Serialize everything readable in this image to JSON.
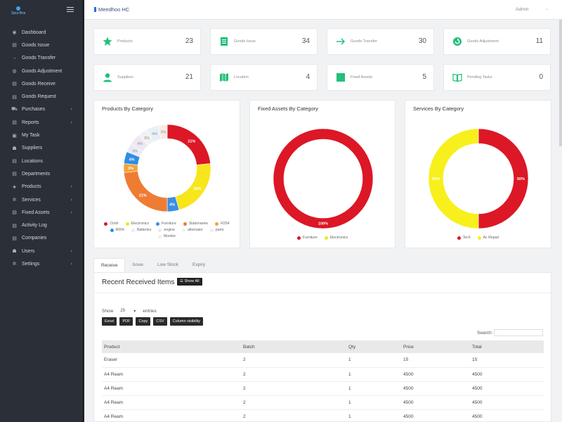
{
  "brand": {
    "name": "Spui-Bne"
  },
  "sidebar": {
    "items": [
      {
        "label": "Dashboard",
        "icon": "dashboard-icon",
        "glyph": "◉",
        "chevron": false
      },
      {
        "label": "Goods Issue",
        "icon": "file-icon",
        "glyph": "▤",
        "chevron": false
      },
      {
        "label": "Goods Transfer",
        "icon": "arrow-right-icon",
        "glyph": "→",
        "chevron": false
      },
      {
        "label": "Goods Adjustment",
        "icon": "globe-icon",
        "glyph": "◍",
        "chevron": false
      },
      {
        "label": "Goods Receive",
        "icon": "inbox-icon",
        "glyph": "▤",
        "chevron": false
      },
      {
        "label": "Goods Request",
        "icon": "file-icon",
        "glyph": "▤",
        "chevron": false
      },
      {
        "label": "Purchases",
        "icon": "cart-icon",
        "glyph": "⛟",
        "chevron": true
      },
      {
        "label": "Reports",
        "icon": "report-icon",
        "glyph": "▤",
        "chevron": true
      },
      {
        "label": "My Task",
        "icon": "task-icon",
        "glyph": "▣",
        "chevron": false
      },
      {
        "label": "Suppliers",
        "icon": "suppliers-icon",
        "glyph": "☗",
        "chevron": false
      },
      {
        "label": "Locations",
        "icon": "location-icon",
        "glyph": "▤",
        "chevron": false
      },
      {
        "label": "Departments",
        "icon": "departments-icon",
        "glyph": "▤",
        "chevron": false
      },
      {
        "label": "Products",
        "icon": "star-icon",
        "glyph": "★",
        "chevron": true
      },
      {
        "label": "Services",
        "icon": "gear-icon",
        "glyph": "✲",
        "chevron": true
      },
      {
        "label": "Fixed Assets",
        "icon": "assets-icon",
        "glyph": "▤",
        "chevron": true
      },
      {
        "label": "Activity Log",
        "icon": "log-icon",
        "glyph": "▤",
        "chevron": false
      },
      {
        "label": "Companies",
        "icon": "companies-icon",
        "glyph": "▤",
        "chevron": false
      },
      {
        "label": "Users",
        "icon": "users-icon",
        "glyph": "☗",
        "chevron": true
      },
      {
        "label": "Settings",
        "icon": "settings-icon",
        "glyph": "✲",
        "chevron": true
      }
    ]
  },
  "topbar": {
    "title": "Meedhoo HC",
    "user": "Admin"
  },
  "stats": [
    {
      "label": "Products",
      "value": "23",
      "icon": "star-icon",
      "color": "#22c07a"
    },
    {
      "label": "Goods Issue",
      "value": "34",
      "icon": "document-icon",
      "color": "#22c07a"
    },
    {
      "label": "Goods Transfer",
      "value": "30",
      "icon": "arrow-right-icon",
      "color": "#22c07a"
    },
    {
      "label": "Goods Adjustment",
      "value": "11",
      "icon": "refresh-icon",
      "color": "#22c07a"
    },
    {
      "label": "Suppliers",
      "value": "21",
      "icon": "user-icon",
      "color": "#22c07a"
    },
    {
      "label": "Location",
      "value": "4",
      "icon": "map-icon",
      "color": "#22c07a"
    },
    {
      "label": "Fixed Assets",
      "value": "5",
      "icon": "square-icon",
      "color": "#22c07a"
    },
    {
      "label": "Pending Tasks",
      "value": "0",
      "icon": "book-icon",
      "color": "#22c07a"
    }
  ],
  "chart_data": [
    {
      "type": "pie",
      "title": "Products By Category",
      "categories": [
        "Cloth",
        "Electronics",
        "Furniture",
        "Stationaries",
        "R254",
        "R004",
        "Batteries",
        "engine",
        "alternator",
        "parts",
        "Monitor"
      ],
      "values": [
        21,
        20,
        4,
        21,
        3,
        4,
        3,
        4,
        3,
        4,
        3
      ],
      "labels": [
        "21%",
        "20%",
        "4%",
        "21%",
        "3%",
        "4%",
        "3%",
        "4%",
        "3%",
        "4%",
        "3%"
      ],
      "colors": [
        "#dc1726",
        "#f7e61c",
        "#3a8fe4",
        "#ef7c33",
        "#f4a23a",
        "#2f8de4",
        "#eaeaf7",
        "#efe7f4",
        "#eef3ef",
        "#e7f0f7",
        "#f7ece4"
      ],
      "legend_position": "bottom"
    },
    {
      "type": "pie",
      "title": "Fixed Assets By Category",
      "categories": [
        "Furniture",
        "Electronics"
      ],
      "values": [
        100,
        0
      ],
      "labels": [
        "100%",
        ""
      ],
      "colors": [
        "#dc1726",
        "#f7e61c"
      ],
      "legend_position": "bottom"
    },
    {
      "type": "pie",
      "title": "Services By Category",
      "categories": [
        "Tech",
        "Ac Repair"
      ],
      "values": [
        50,
        50
      ],
      "labels": [
        "50%",
        "50%"
      ],
      "colors": [
        "#dc1726",
        "#f7f01c"
      ],
      "legend_position": "bottom"
    }
  ],
  "tabs": [
    "Receive",
    "Issue",
    "Low Stock",
    "Expiry"
  ],
  "panel": {
    "title": "Recent Received Items",
    "show_all": "Show All",
    "show_label": "Show",
    "entries_value": "25",
    "entries_label": "entries",
    "buttons": [
      "Excel",
      "PDF",
      "Copy",
      "CSV",
      "Column visibility"
    ],
    "search_label": "Search:",
    "columns": [
      "Product",
      "Batch",
      "Qty",
      "Price",
      "Total"
    ],
    "rows": [
      [
        "Eraser",
        "2",
        "1",
        "15",
        "15"
      ],
      [
        "A4 Ream",
        "2",
        "1",
        "4500",
        "4500"
      ],
      [
        "A4 Ream",
        "2",
        "1",
        "4500",
        "4500"
      ],
      [
        "A4 Ream",
        "2",
        "1",
        "4500",
        "4500"
      ],
      [
        "A4 Ream",
        "2",
        "1",
        "4500",
        "4500"
      ]
    ]
  }
}
